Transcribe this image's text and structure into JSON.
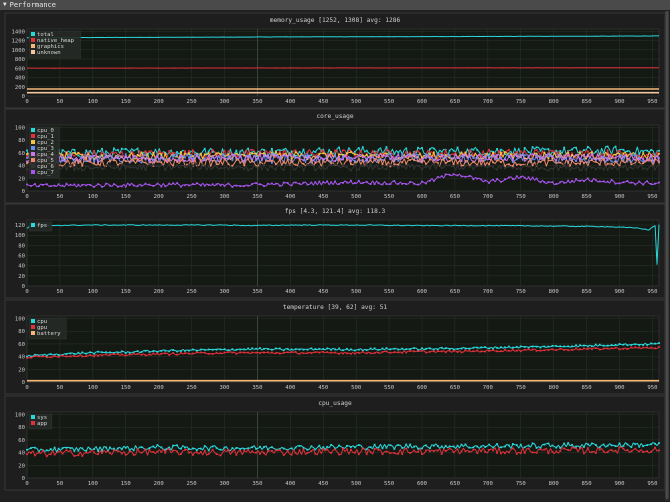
{
  "window": {
    "title": "Performance",
    "collapse_icon": "triangle-down-icon"
  },
  "x_ticks": [
    0,
    50,
    100,
    150,
    200,
    250,
    300,
    350,
    400,
    450,
    500,
    550,
    600,
    650,
    700,
    750,
    800,
    850,
    900,
    950
  ],
  "chart_data": [
    {
      "type": "line",
      "title": "memory_usage [1252, 1308] avg: 1286",
      "xlim": [
        0,
        960
      ],
      "ylim": [
        0,
        1450
      ],
      "yticks": [
        0,
        200,
        400,
        600,
        800,
        1000,
        1200,
        1400
      ],
      "grid": true,
      "legend_position": "top-left",
      "series": [
        {
          "name": "total",
          "color": "#2ad8dc",
          "points": [
            [
              0,
              1262
            ],
            [
              200,
              1270
            ],
            [
              400,
              1279
            ],
            [
              600,
              1285
            ],
            [
              800,
              1292
            ],
            [
              960,
              1300
            ]
          ]
        },
        {
          "name": "native_heap",
          "color": "#e0303a",
          "points": [
            [
              0,
              603
            ],
            [
              300,
              606
            ],
            [
              600,
              608
            ],
            [
              960,
              611
            ]
          ]
        },
        {
          "name": "graphics",
          "color": "#f5b87a",
          "points": [
            [
              0,
              152
            ],
            [
              960,
              152
            ]
          ]
        },
        {
          "name": "unknown",
          "color": "#f7c6a0",
          "points": [
            [
              0,
              72
            ],
            [
              960,
              72
            ]
          ]
        }
      ]
    },
    {
      "type": "line",
      "title": "core_usage",
      "xlim": [
        0,
        960
      ],
      "ylim": [
        0,
        104
      ],
      "yticks": [
        0,
        20,
        40,
        60,
        80,
        100
      ],
      "grid": true,
      "legend_position": "top-left",
      "series": [
        {
          "name": "cpu_0",
          "color": "#2ad8dc",
          "points": [
            [
              0,
              58
            ],
            [
              100,
              60
            ],
            [
              200,
              62
            ],
            [
              300,
              61
            ],
            [
              400,
              62
            ],
            [
              500,
              63
            ],
            [
              600,
              62
            ],
            [
              700,
              63
            ],
            [
              800,
              62
            ],
            [
              900,
              64
            ],
            [
              960,
              61
            ]
          ]
        },
        {
          "name": "cpu_1",
          "color": "#e0303a",
          "points": [
            [
              0,
              56
            ],
            [
              200,
              58
            ],
            [
              400,
              59
            ],
            [
              600,
              58
            ],
            [
              800,
              59
            ],
            [
              960,
              57
            ]
          ]
        },
        {
          "name": "cpu_2",
          "color": "#f5c542",
          "points": [
            [
              0,
              54
            ],
            [
              200,
              55
            ],
            [
              400,
              56
            ],
            [
              600,
              55
            ],
            [
              800,
              56
            ],
            [
              960,
              55
            ]
          ]
        },
        {
          "name": "cpu_3",
          "color": "#6a8cf0",
          "points": [
            [
              0,
              50
            ],
            [
              200,
              52
            ],
            [
              400,
              51
            ],
            [
              600,
              52
            ],
            [
              800,
              51
            ],
            [
              960,
              50
            ]
          ]
        },
        {
          "name": "cpu_4",
          "color": "#c779f0",
          "points": [
            [
              0,
              52
            ],
            [
              200,
              51
            ],
            [
              400,
              53
            ],
            [
              600,
              52
            ],
            [
              800,
              53
            ],
            [
              960,
              52
            ]
          ]
        },
        {
          "name": "cpu_5",
          "color": "#f08a6a",
          "points": [
            [
              0,
              44
            ],
            [
              200,
              45
            ],
            [
              400,
              44
            ],
            [
              600,
              45
            ],
            [
              800,
              44
            ],
            [
              960,
              45
            ]
          ]
        },
        {
          "name": "cpu_6",
          "color": "#333333",
          "points": [
            [
              0,
              36
            ],
            [
              200,
              38
            ],
            [
              400,
              37
            ],
            [
              600,
              38
            ],
            [
              800,
              37
            ],
            [
              960,
              38
            ]
          ]
        },
        {
          "name": "cpu_7",
          "color": "#a855f0",
          "points": [
            [
              0,
              8
            ],
            [
              100,
              9
            ],
            [
              200,
              10
            ],
            [
              300,
              9
            ],
            [
              400,
              11
            ],
            [
              500,
              14
            ],
            [
              600,
              12
            ],
            [
              650,
              28
            ],
            [
              700,
              14
            ],
            [
              750,
              22
            ],
            [
              800,
              12
            ],
            [
              850,
              18
            ],
            [
              900,
              14
            ],
            [
              960,
              12
            ]
          ]
        }
      ]
    },
    {
      "type": "line",
      "title": "fps [4.3, 121.4] avg: 118.3",
      "xlim": [
        0,
        960
      ],
      "ylim": [
        0,
        130
      ],
      "yticks": [
        0,
        20,
        40,
        60,
        80,
        100,
        120
      ],
      "grid": true,
      "legend_position": "top-left",
      "series": [
        {
          "name": "fps",
          "color": "#2ad8dc",
          "points": [
            [
              0,
              114
            ],
            [
              8,
              119
            ],
            [
              100,
              120
            ],
            [
              200,
              120
            ],
            [
              300,
              120
            ],
            [
              340,
              119
            ],
            [
              400,
              120
            ],
            [
              500,
              120
            ],
            [
              600,
              119
            ],
            [
              700,
              119
            ],
            [
              800,
              118
            ],
            [
              880,
              117
            ],
            [
              930,
              114
            ],
            [
              945,
              110
            ],
            [
              950,
              117
            ],
            [
              955,
              119
            ],
            [
              958,
              4.3
            ],
            [
              960,
              120
            ]
          ]
        }
      ]
    },
    {
      "type": "line",
      "title": "temperature [39, 62] avg: 51",
      "xlim": [
        0,
        960
      ],
      "ylim": [
        0,
        104
      ],
      "yticks": [
        0,
        20,
        40,
        60,
        80,
        100
      ],
      "grid": true,
      "legend_position": "top-left",
      "series": [
        {
          "name": "cpu",
          "color": "#2ad8dc",
          "points": [
            [
              0,
              41
            ],
            [
              50,
              44
            ],
            [
              100,
              46
            ],
            [
              150,
              47
            ],
            [
              200,
              49
            ],
            [
              250,
              50
            ],
            [
              300,
              51
            ],
            [
              350,
              52
            ],
            [
              400,
              51
            ],
            [
              450,
              52
            ],
            [
              500,
              51
            ],
            [
              550,
              52
            ],
            [
              600,
              52
            ],
            [
              650,
              53
            ],
            [
              700,
              54
            ],
            [
              750,
              55
            ],
            [
              800,
              56
            ],
            [
              850,
              57
            ],
            [
              900,
              59
            ],
            [
              960,
              60
            ]
          ]
        },
        {
          "name": "gpu",
          "color": "#e0303a",
          "points": [
            [
              0,
              39
            ],
            [
              50,
              41
            ],
            [
              100,
              42
            ],
            [
              150,
              43
            ],
            [
              200,
              44
            ],
            [
              250,
              45
            ],
            [
              300,
              46
            ],
            [
              350,
              46
            ],
            [
              400,
              46
            ],
            [
              450,
              46
            ],
            [
              500,
              46
            ],
            [
              550,
              47
            ],
            [
              600,
              48
            ],
            [
              650,
              48
            ],
            [
              700,
              49
            ],
            [
              750,
              50
            ],
            [
              800,
              51
            ],
            [
              850,
              52
            ],
            [
              900,
              53
            ],
            [
              960,
              54
            ]
          ]
        },
        {
          "name": "battery",
          "color": "#f5b87a",
          "points": [
            [
              0,
              2
            ],
            [
              960,
              2
            ]
          ]
        }
      ]
    },
    {
      "type": "line",
      "title": "cpu_usage",
      "xlim": [
        0,
        960
      ],
      "ylim": [
        0,
        104
      ],
      "yticks": [
        0,
        20,
        40,
        60,
        80,
        100
      ],
      "grid": true,
      "legend_position": "top-left",
      "series": [
        {
          "name": "sys",
          "color": "#2ad8dc",
          "points": [
            [
              0,
              44
            ],
            [
              100,
              46
            ],
            [
              200,
              48
            ],
            [
              300,
              47
            ],
            [
              400,
              48
            ],
            [
              500,
              49
            ],
            [
              600,
              50
            ],
            [
              700,
              50
            ],
            [
              800,
              51
            ],
            [
              900,
              52
            ],
            [
              960,
              53
            ]
          ]
        },
        {
          "name": "app",
          "color": "#e0303a",
          "points": [
            [
              0,
              38
            ],
            [
              100,
              40
            ],
            [
              200,
              41
            ],
            [
              300,
              40
            ],
            [
              400,
              41
            ],
            [
              500,
              42
            ],
            [
              600,
              42
            ],
            [
              700,
              43
            ],
            [
              800,
              43
            ],
            [
              900,
              44
            ],
            [
              960,
              44
            ]
          ]
        }
      ]
    }
  ]
}
